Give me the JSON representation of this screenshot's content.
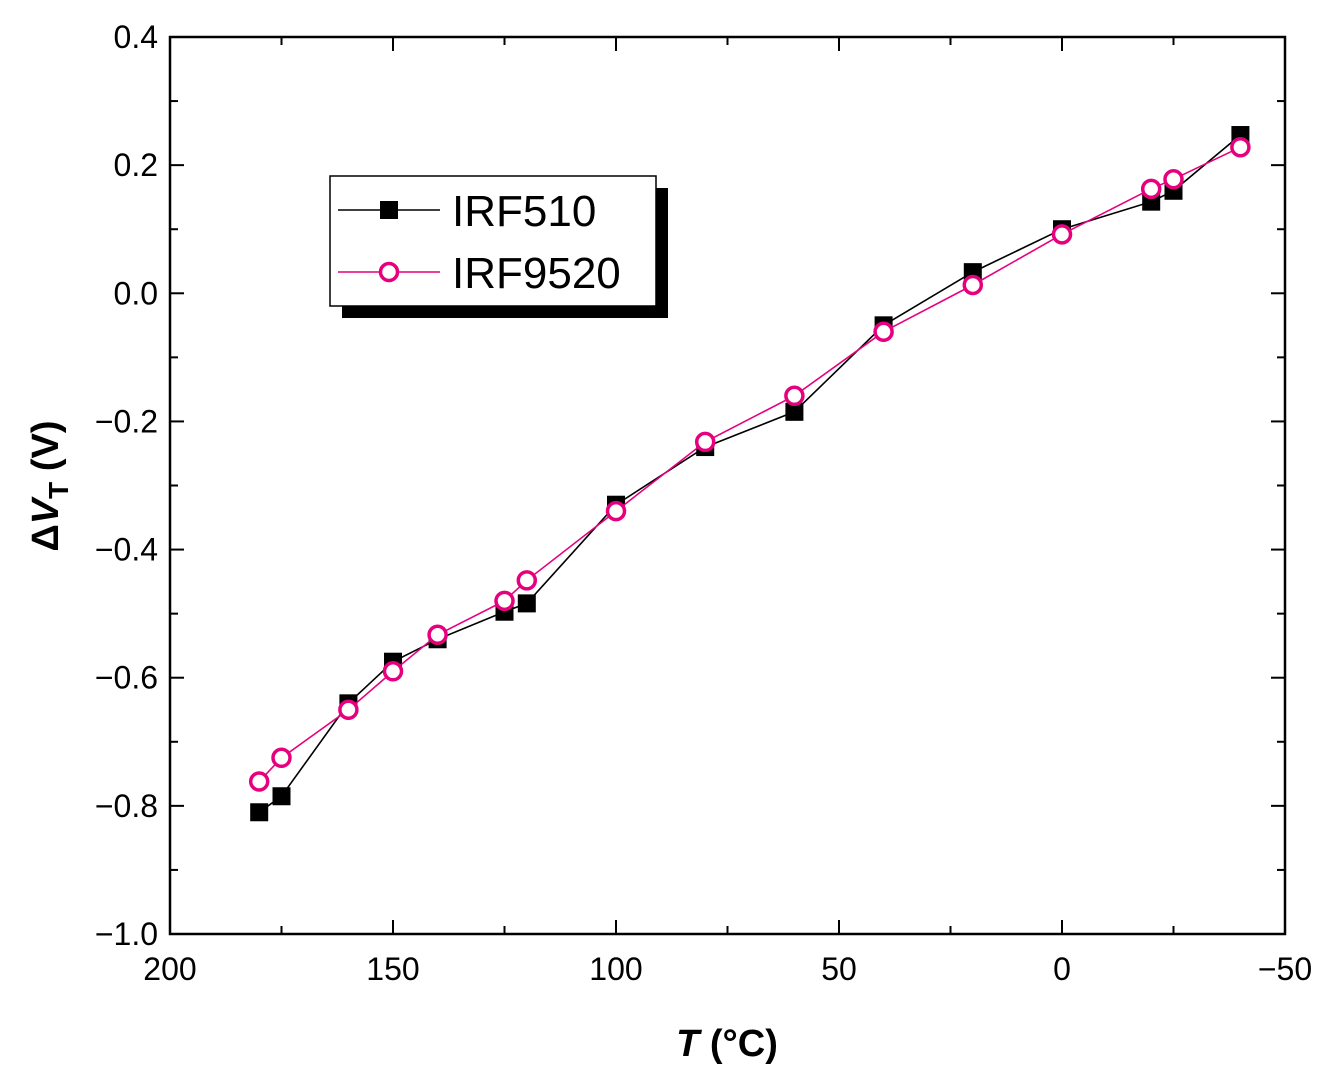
{
  "chart_data": {
    "type": "line",
    "title": "",
    "xlabel_italic": "T",
    "xlabel_rest": " (°C)",
    "ylabel_prefix": "Δ",
    "ylabel_var": "V",
    "ylabel_sub": "T",
    "ylabel_rest": " (V)",
    "xlim": [
      200,
      -50
    ],
    "ylim": [
      -1.0,
      0.4
    ],
    "x_ticks": [
      200,
      150,
      100,
      50,
      0,
      -50
    ],
    "x_tick_labels": [
      "200",
      "150",
      "100",
      "50",
      "0",
      "−50"
    ],
    "y_ticks": [
      0.4,
      0.2,
      0.0,
      -0.2,
      -0.4,
      -0.6,
      -0.8,
      -1.0
    ],
    "y_tick_labels": [
      "0.4",
      "0.2",
      "0.0",
      "−0.2",
      "−0.4",
      "−0.6",
      "−0.8",
      "−1.0"
    ],
    "grid": false,
    "legend_position": "upper-left",
    "series": [
      {
        "name": "IRF510",
        "color": "#000000",
        "marker": "filled-square",
        "x": [
          180,
          175,
          160,
          150,
          140,
          125,
          120,
          100,
          80,
          60,
          40,
          20,
          0,
          -20,
          -25,
          -40
        ],
        "y": [
          -0.81,
          -0.785,
          -0.64,
          -0.575,
          -0.54,
          -0.497,
          -0.484,
          -0.33,
          -0.24,
          -0.185,
          -0.05,
          0.033,
          0.1,
          0.143,
          0.16,
          0.247
        ]
      },
      {
        "name": "IRF9520",
        "color": "#e6007e",
        "marker": "open-circle",
        "x": [
          180,
          175,
          160,
          150,
          140,
          125,
          120,
          100,
          80,
          60,
          40,
          20,
          0,
          -20,
          -25,
          -40
        ],
        "y": [
          -0.762,
          -0.725,
          -0.65,
          -0.59,
          -0.533,
          -0.48,
          -0.448,
          -0.34,
          -0.232,
          -0.16,
          -0.06,
          0.013,
          0.092,
          0.163,
          0.178,
          0.228
        ]
      }
    ]
  }
}
